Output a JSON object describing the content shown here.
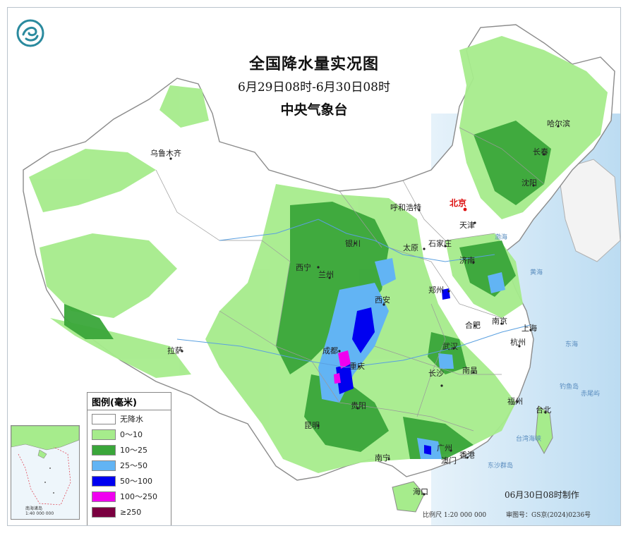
{
  "title": "全国降水量实况图",
  "time_range": "6月29日08时-6月30日08时",
  "agency": "中央气象台",
  "legend": {
    "title": "图例(毫米)",
    "items": [
      {
        "label": "无降水",
        "color": "#ffffff"
      },
      {
        "label": "0～10",
        "color": "#a6ec8c"
      },
      {
        "label": "10～25",
        "color": "#3aa63a"
      },
      {
        "label": "25～50",
        "color": "#62b4f4"
      },
      {
        "label": "50～100",
        "color": "#0000f0"
      },
      {
        "label": "100～250",
        "color": "#f000f0"
      },
      {
        "label": "≥250",
        "color": "#7a0040"
      }
    ]
  },
  "cities": {
    "urumqi": "乌鲁木齐",
    "lhasa": "拉萨",
    "xining": "西宁",
    "lanzhou": "兰州",
    "yinchuan": "银川",
    "hohhot": "呼和浩特",
    "beijing": "北京",
    "tianjin": "天津",
    "taiyuan": "太原",
    "shijiazhuang": "石家庄",
    "jinan": "济南",
    "zhengzhou": "郑州",
    "xian": "西安",
    "chengdu": "成都",
    "chongqing": "重庆",
    "guiyang": "贵阳",
    "kunming": "昆明",
    "nanning": "南宁",
    "guangzhou": "广州",
    "hongkong": "香港",
    "macau": "澳门",
    "haikou": "海口",
    "changsha": "长沙",
    "wuhan": "武汉",
    "hefei": "合肥",
    "nanjing": "南京",
    "shanghai": "上海",
    "hangzhou": "杭州",
    "nanchang": "南昌",
    "fuzhou": "福州",
    "taipei": "台北",
    "harbin": "哈尔滨",
    "changchun": "长春",
    "shenyang": "沈阳"
  },
  "seas": {
    "bohai": "渤海",
    "yellow": "黄海",
    "east": "东海",
    "taiwan_strait": "台湾海峡",
    "dongsha": "东沙群岛",
    "diaoyu": "钓鱼岛",
    "chiwei": "赤尾屿"
  },
  "inset_label": "南海诸岛\n1:40 000 000",
  "made_time": "06月30日08时制作",
  "scale": "比例尺 1:20 000 000",
  "review_no": "审图号：GS京(2024)0236号",
  "colors": {
    "background": "#ffffff",
    "sea": "#cfe6f5",
    "border": "#8b8b8b"
  }
}
